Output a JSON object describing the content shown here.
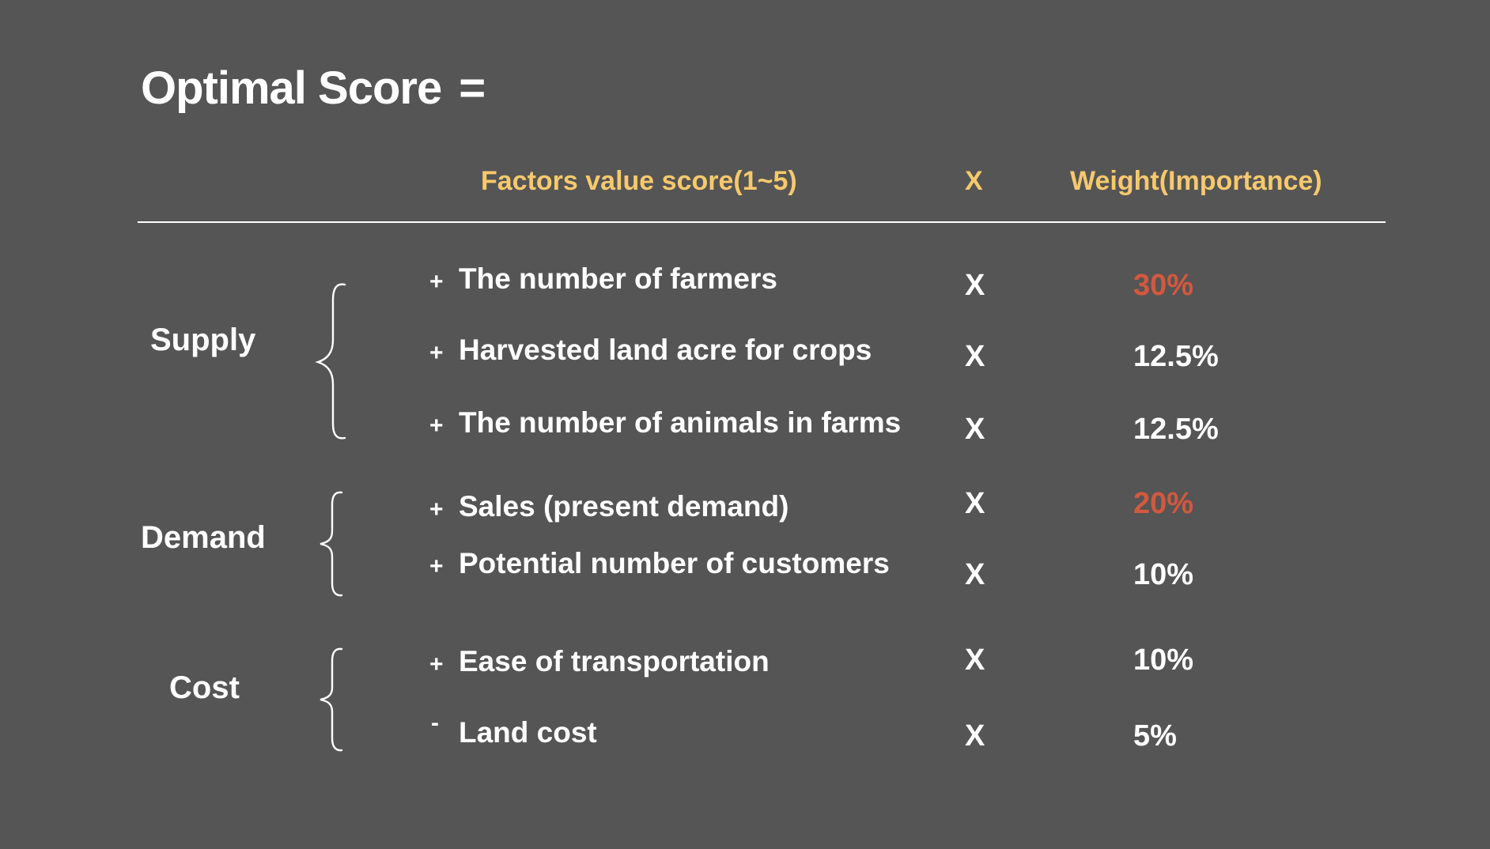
{
  "title": "Optimal Score",
  "equals": "=",
  "header": {
    "factors": "Factors value score(1~5)",
    "x": "X",
    "weight": "Weight(Importance)"
  },
  "groups": [
    {
      "label": "Supply"
    },
    {
      "label": "Demand"
    },
    {
      "label": "Cost"
    }
  ],
  "rows": [
    {
      "sign": "+",
      "factor": "The number of farmers",
      "x": "X",
      "weight": "30%",
      "highlight": true
    },
    {
      "sign": "+",
      "factor": "Harvested land acre for crops",
      "x": "X",
      "weight": "12.5%",
      "highlight": false
    },
    {
      "sign": "+",
      "factor": "The number of animals in farms",
      "x": "X",
      "weight": "12.5%",
      "highlight": false
    },
    {
      "sign": "+",
      "factor": "Sales (present demand)",
      "x": "X",
      "weight": "20%",
      "highlight": true
    },
    {
      "sign": "+",
      "factor": "Potential number of customers",
      "x": "X",
      "weight": "10%",
      "highlight": false
    },
    {
      "sign": "+",
      "factor": "Ease of transportation",
      "x": "X",
      "weight": "10%",
      "highlight": false
    },
    {
      "sign": "-",
      "factor": "Land cost",
      "x": "X",
      "weight": "5%",
      "highlight": false
    }
  ],
  "colors": {
    "background": "#555555",
    "header": "#f7c96d",
    "highlight": "#d2593e",
    "text": "#ffffff"
  }
}
